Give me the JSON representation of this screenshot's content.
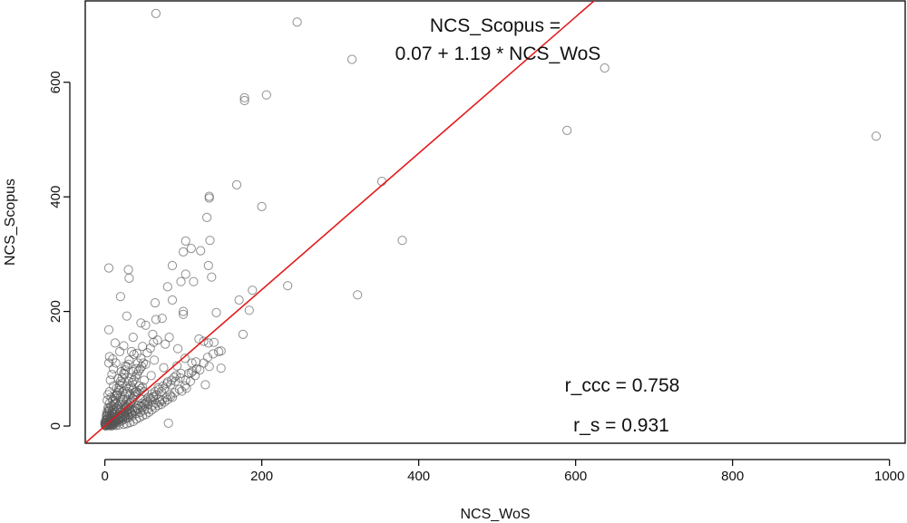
{
  "chart_data": {
    "type": "scatter",
    "title": "",
    "xlabel": "NCS_WoS",
    "ylabel": "NCS_Scopus",
    "xlim": [
      -25,
      1020
    ],
    "ylim": [
      -30,
      742
    ],
    "x_ticks": [
      0,
      200,
      400,
      600,
      800,
      1000
    ],
    "x_tick_labels": [
      "0",
      "200",
      "400",
      "600",
      "800",
      "1000"
    ],
    "y_ticks": [
      0,
      200,
      400,
      600
    ],
    "y_tick_labels": [
      "0",
      "200",
      "400",
      "600"
    ],
    "grid": false,
    "legend": "none",
    "regression_line": {
      "intercept": 0.07,
      "slope": 1.19,
      "color": "#e31a1c"
    },
    "annotations": {
      "equation_line1": "NCS_Scopus =",
      "equation_line2": "0.07 +  1.19 * NCS_WoS",
      "r_ccc": "r_ccc = 0.758",
      "r_s": "r_s = 0.931"
    },
    "point_color": "#555555",
    "points": [
      [
        65,
        720
      ],
      [
        245,
        705
      ],
      [
        315,
        640
      ],
      [
        637,
        625
      ],
      [
        178,
        573
      ],
      [
        206,
        578
      ],
      [
        178,
        568
      ],
      [
        589,
        516
      ],
      [
        983,
        506
      ],
      [
        353,
        427
      ],
      [
        168,
        421
      ],
      [
        133,
        398
      ],
      [
        133,
        401
      ],
      [
        200,
        383
      ],
      [
        379,
        324
      ],
      [
        130,
        364
      ],
      [
        103,
        323
      ],
      [
        134,
        324
      ],
      [
        110,
        310
      ],
      [
        100,
        304
      ],
      [
        122,
        306
      ],
      [
        132,
        280
      ],
      [
        5,
        276
      ],
      [
        30,
        273
      ],
      [
        31,
        258
      ],
      [
        86,
        280
      ],
      [
        103,
        265
      ],
      [
        136,
        260
      ],
      [
        97,
        252
      ],
      [
        113,
        252
      ],
      [
        233,
        245
      ],
      [
        322,
        229
      ],
      [
        188,
        237
      ],
      [
        80,
        243
      ],
      [
        20,
        226
      ],
      [
        171,
        220
      ],
      [
        64,
        215
      ],
      [
        86,
        220
      ],
      [
        184,
        202
      ],
      [
        100,
        200
      ],
      [
        100,
        195
      ],
      [
        28,
        192
      ],
      [
        142,
        198
      ],
      [
        46,
        180
      ],
      [
        65,
        186
      ],
      [
        73,
        188
      ],
      [
        52,
        176
      ],
      [
        5,
        168
      ],
      [
        176,
        160
      ],
      [
        61,
        160
      ],
      [
        82,
        155
      ],
      [
        36,
        155
      ],
      [
        120,
        152
      ],
      [
        126,
        148
      ],
      [
        139,
        146
      ],
      [
        132,
        145
      ],
      [
        77,
        143
      ],
      [
        48,
        139
      ],
      [
        93,
        135
      ],
      [
        148,
        131
      ],
      [
        34,
        130
      ],
      [
        41,
        127
      ],
      [
        6,
        121
      ],
      [
        10,
        117
      ],
      [
        102,
        118
      ],
      [
        116,
        112
      ],
      [
        63,
        115
      ],
      [
        52,
        108
      ],
      [
        5,
        110
      ],
      [
        133,
        104
      ],
      [
        111,
        110
      ],
      [
        75,
        102
      ],
      [
        92,
        105
      ],
      [
        148,
        101
      ],
      [
        110,
        93
      ],
      [
        88,
        85
      ],
      [
        59,
        88
      ],
      [
        103,
        80
      ],
      [
        80,
        77
      ],
      [
        128,
        72
      ],
      [
        104,
        66
      ],
      [
        68,
        67
      ],
      [
        50,
        60
      ],
      [
        98,
        61
      ],
      [
        38,
        59
      ],
      [
        84,
        52
      ],
      [
        45,
        48
      ],
      [
        33,
        42
      ],
      [
        70,
        42
      ],
      [
        55,
        38
      ],
      [
        81,
        5
      ],
      [
        26,
        36
      ],
      [
        18,
        30
      ],
      [
        12,
        28
      ],
      [
        9,
        22
      ],
      [
        6,
        19
      ],
      [
        4,
        14
      ],
      [
        3,
        10
      ],
      [
        2,
        7
      ],
      [
        1,
        4
      ],
      [
        1,
        2
      ],
      [
        0.5,
        1
      ],
      [
        14,
        40
      ],
      [
        20,
        50
      ],
      [
        23,
        60
      ],
      [
        27,
        70
      ],
      [
        30,
        78
      ],
      [
        34,
        85
      ],
      [
        36,
        95
      ],
      [
        40,
        100
      ],
      [
        42,
        110
      ],
      [
        46,
        118
      ],
      [
        54,
        128
      ],
      [
        58,
        136
      ],
      [
        62,
        146
      ],
      [
        67,
        150
      ],
      [
        18,
        62
      ],
      [
        22,
        75
      ],
      [
        25,
        90
      ],
      [
        16,
        55
      ],
      [
        40,
        60
      ],
      [
        44,
        70
      ],
      [
        50,
        80
      ],
      [
        28,
        45
      ],
      [
        32,
        55
      ],
      [
        36,
        64
      ],
      [
        24,
        35
      ],
      [
        30,
        38
      ],
      [
        8,
        35
      ],
      [
        10,
        45
      ],
      [
        12,
        52
      ],
      [
        15,
        66
      ],
      [
        7,
        80
      ],
      [
        9,
        90
      ],
      [
        11,
        100
      ],
      [
        14,
        110
      ],
      [
        3,
        45
      ],
      [
        4,
        55
      ],
      [
        6,
        60
      ],
      [
        20,
        8
      ],
      [
        25,
        12
      ],
      [
        30,
        15
      ],
      [
        35,
        18
      ],
      [
        40,
        22
      ],
      [
        45,
        24
      ],
      [
        50,
        28
      ],
      [
        55,
        30
      ],
      [
        60,
        35
      ],
      [
        65,
        40
      ],
      [
        70,
        46
      ],
      [
        12,
        3
      ],
      [
        16,
        6
      ],
      [
        22,
        10
      ],
      [
        28,
        14
      ],
      [
        34,
        20
      ],
      [
        38,
        26
      ],
      [
        42,
        30
      ],
      [
        48,
        34
      ],
      [
        52,
        40
      ],
      [
        58,
        48
      ],
      [
        62,
        52
      ],
      [
        72,
        60
      ],
      [
        76,
        66
      ],
      [
        84,
        72
      ],
      [
        90,
        78
      ],
      [
        96,
        84
      ],
      [
        21,
        95
      ],
      [
        26,
        105
      ],
      [
        31,
        115
      ],
      [
        37,
        125
      ],
      [
        19,
        130
      ],
      [
        24,
        140
      ],
      [
        13,
        145
      ],
      [
        17,
        83
      ],
      [
        11,
        70
      ],
      [
        5,
        30
      ],
      [
        6,
        40
      ],
      [
        8,
        50
      ],
      [
        2,
        20
      ],
      [
        3,
        25
      ],
      [
        4,
        32
      ],
      [
        7,
        12
      ],
      [
        9,
        16
      ],
      [
        11,
        20
      ],
      [
        13,
        24
      ],
      [
        15,
        30
      ],
      [
        17,
        34
      ],
      [
        19,
        38
      ],
      [
        21,
        42
      ],
      [
        23,
        46
      ],
      [
        25,
        52
      ],
      [
        27,
        56
      ],
      [
        29,
        60
      ],
      [
        31,
        66
      ],
      [
        33,
        70
      ],
      [
        35,
        76
      ],
      [
        37,
        80
      ],
      [
        39,
        86
      ],
      [
        41,
        90
      ],
      [
        43,
        96
      ],
      [
        45,
        100
      ],
      [
        47,
        104
      ],
      [
        49,
        110
      ],
      [
        6,
        5
      ],
      [
        8,
        8
      ],
      [
        10,
        9
      ],
      [
        12,
        12
      ],
      [
        14,
        15
      ],
      [
        16,
        18
      ],
      [
        18,
        20
      ],
      [
        20,
        24
      ],
      [
        22,
        27
      ],
      [
        24,
        30
      ],
      [
        26,
        32
      ],
      [
        28,
        34
      ],
      [
        30,
        36
      ],
      [
        32,
        40
      ],
      [
        34,
        44
      ],
      [
        36,
        48
      ],
      [
        38,
        52
      ],
      [
        40,
        55
      ],
      [
        42,
        58
      ],
      [
        44,
        62
      ],
      [
        46,
        65
      ],
      [
        48,
        68
      ],
      [
        8,
        2
      ],
      [
        10,
        4
      ],
      [
        14,
        8
      ],
      [
        18,
        11
      ],
      [
        22,
        14
      ],
      [
        26,
        17
      ],
      [
        30,
        20
      ],
      [
        34,
        23
      ],
      [
        38,
        27
      ],
      [
        42,
        31
      ],
      [
        46,
        35
      ],
      [
        50,
        38
      ],
      [
        54,
        42
      ],
      [
        58,
        45
      ],
      [
        62,
        50
      ],
      [
        66,
        55
      ],
      [
        5,
        2
      ],
      [
        7,
        3
      ],
      [
        9,
        6
      ],
      [
        11,
        8
      ],
      [
        13,
        10
      ],
      [
        15,
        12
      ],
      [
        17,
        14
      ],
      [
        19,
        16
      ],
      [
        21,
        18
      ],
      [
        23,
        20
      ],
      [
        25,
        22
      ],
      [
        27,
        25
      ],
      [
        29,
        28
      ],
      [
        31,
        30
      ],
      [
        3,
        3
      ],
      [
        4,
        5
      ],
      [
        5,
        8
      ],
      [
        6,
        10
      ],
      [
        7,
        14
      ],
      [
        8,
        18
      ],
      [
        9,
        24
      ],
      [
        10,
        28
      ],
      [
        11,
        34
      ],
      [
        12,
        38
      ],
      [
        13,
        44
      ],
      [
        14,
        48
      ],
      [
        15,
        54
      ],
      [
        16,
        58
      ],
      [
        18,
        66
      ],
      [
        19,
        72
      ],
      [
        20,
        78
      ],
      [
        22,
        84
      ],
      [
        24,
        92
      ],
      [
        26,
        98
      ],
      [
        28,
        104
      ],
      [
        30,
        108
      ],
      [
        1,
        6
      ],
      [
        2,
        12
      ],
      [
        2,
        16
      ],
      [
        3,
        18
      ],
      [
        4,
        22
      ],
      [
        5,
        26
      ],
      [
        6,
        28
      ],
      [
        1,
        10
      ],
      [
        0,
        3
      ],
      [
        0,
        6
      ],
      [
        1,
        0
      ],
      [
        2,
        1
      ],
      [
        3,
        1
      ],
      [
        4,
        2
      ],
      [
        5,
        1
      ],
      [
        6,
        3
      ],
      [
        7,
        5
      ],
      [
        9,
        4
      ],
      [
        11,
        5
      ],
      [
        13,
        7
      ],
      [
        15,
        9
      ],
      [
        17,
        11
      ],
      [
        20,
        13
      ],
      [
        23,
        16
      ],
      [
        26,
        19
      ],
      [
        29,
        22
      ],
      [
        32,
        25
      ],
      [
        35,
        28
      ],
      [
        39,
        32
      ],
      [
        43,
        36
      ],
      [
        47,
        40
      ],
      [
        51,
        44
      ],
      [
        55,
        50
      ],
      [
        60,
        56
      ],
      [
        64,
        60
      ],
      [
        69,
        64
      ],
      [
        74,
        70
      ],
      [
        79,
        74
      ],
      [
        85,
        80
      ],
      [
        91,
        88
      ],
      [
        97,
        92
      ],
      [
        40,
        12
      ],
      [
        44,
        15
      ],
      [
        48,
        18
      ],
      [
        52,
        20
      ],
      [
        56,
        24
      ],
      [
        60,
        28
      ],
      [
        64,
        32
      ],
      [
        68,
        36
      ],
      [
        72,
        38
      ],
      [
        76,
        42
      ],
      [
        80,
        46
      ],
      [
        86,
        50
      ],
      [
        36,
        8
      ],
      [
        32,
        6
      ],
      [
        28,
        4
      ],
      [
        24,
        3
      ],
      [
        18,
        2
      ],
      [
        14,
        1
      ],
      [
        10,
        1
      ],
      [
        8,
        0
      ],
      [
        107,
        92
      ],
      [
        112,
        96
      ],
      [
        117,
        100
      ],
      [
        121,
        98
      ],
      [
        126,
        110
      ],
      [
        131,
        120
      ],
      [
        138,
        126
      ],
      [
        145,
        130
      ],
      [
        115,
        88
      ],
      [
        109,
        78
      ],
      [
        102,
        70
      ],
      [
        95,
        64
      ],
      [
        89,
        58
      ],
      [
        83,
        55
      ],
      [
        78,
        50
      ],
      [
        73,
        45
      ]
    ]
  }
}
